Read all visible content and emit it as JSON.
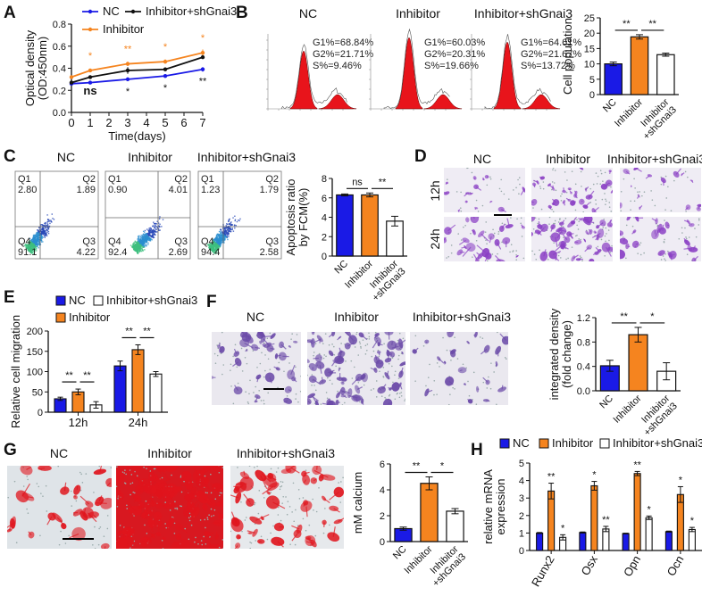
{
  "panels": {
    "A": {
      "label": "A"
    },
    "B": {
      "label": "B",
      "titles": [
        "NC",
        "Inhibitor",
        "Inhibitor+shGnai3"
      ],
      "histograms": [
        {
          "g1": "G1%=68.84%",
          "g2": "G2%=21.71%",
          "s": "S%=9.46%"
        },
        {
          "g1": "G1%=60.03%",
          "g2": "G2%=20.31%",
          "s": "S%=19.66%"
        },
        {
          "g1": "G1%=64.61%",
          "g2": "G2%=21.67%",
          "s": "S%=13.72%"
        }
      ],
      "hist_fill": "#e8141b"
    },
    "C": {
      "label": "C",
      "titles": [
        "NC",
        "Inhibitor",
        "Inhibitor+shGnai3"
      ],
      "flow": [
        {
          "q1": "2.80",
          "q2": "1.89",
          "q3": "4.22",
          "q4": "91.1"
        },
        {
          "q1": "0.90",
          "q2": "4.01",
          "q3": "2.69",
          "q4": "92.4"
        },
        {
          "q1": "1.23",
          "q2": "1.79",
          "q3": "2.58",
          "q4": "94.4"
        }
      ],
      "quadrant_names": [
        "Q1",
        "Q2",
        "Q3",
        "Q4"
      ]
    },
    "D": {
      "label": "D",
      "titles": [
        "NC",
        "Inhibitor",
        "Inhibitor+shGnai3"
      ],
      "rows": [
        "12h",
        "24h"
      ],
      "stain_color": "#8a3fc4"
    },
    "E": {
      "label": "E"
    },
    "F": {
      "label": "F",
      "titles": [
        "NC",
        "Inhibitor",
        "Inhibitor+shGnai3"
      ],
      "stain_color": "#6b4aa8"
    },
    "G": {
      "label": "G",
      "titles": [
        "NC",
        "Inhibitor",
        "Inhibitor+shGnai3"
      ],
      "stain_color": "#e0141c"
    },
    "H": {
      "label": "H"
    }
  },
  "colors": {
    "NC": "#1a1ae6",
    "Inhibitor": "#f5841f",
    "Inhibitor+shGnai3": "#ffffff",
    "line_shGnai3": "#111111"
  },
  "chart_data": [
    {
      "id": "A",
      "type": "line",
      "xlabel": "Time(days)",
      "ylabel": [
        "Optical density",
        "(OD:450nm)"
      ],
      "x": [
        0,
        1,
        3,
        5,
        7
      ],
      "xlim": [
        0,
        7
      ],
      "xticks": [
        "0",
        "1",
        "2",
        "3",
        "4",
        "5",
        "6",
        "7"
      ],
      "ylim": [
        0,
        0.8
      ],
      "yticks": [
        "0.0",
        "0.2",
        "0.4",
        "0.6",
        "0.8"
      ],
      "series": [
        {
          "name": "NC",
          "values": [
            0.26,
            0.27,
            0.3,
            0.33,
            0.39
          ],
          "errors": [
            0.01,
            0.01,
            0.01,
            0.01,
            0.02
          ]
        },
        {
          "name": "Inhibitor",
          "values": [
            0.32,
            0.38,
            0.44,
            0.46,
            0.54
          ],
          "errors": [
            0.01,
            0.01,
            0.02,
            0.02,
            0.03
          ]
        },
        {
          "name": "Inhibitor+shGnai3",
          "values": [
            0.27,
            0.32,
            0.38,
            0.39,
            0.5
          ],
          "errors": [
            0.01,
            0.01,
            0.03,
            0.01,
            0.01
          ]
        }
      ],
      "annotations_inhibitor": [
        "",
        "*",
        "**",
        "*",
        "*"
      ],
      "annotations_shGnai3": [
        "",
        "ns",
        "*",
        "*",
        "**"
      ],
      "legend": "top"
    },
    {
      "id": "B",
      "type": "bar",
      "ylabel": [
        "Cell population"
      ],
      "categories": [
        "NC",
        "Inhibitor",
        "Inhibitor\n+shGnai3"
      ],
      "values": [
        10.0,
        18.8,
        13.0
      ],
      "errors": [
        0.6,
        0.7,
        0.5
      ],
      "ylim": [
        0,
        25
      ],
      "yticks": [
        "0",
        "5",
        "10",
        "15",
        "20",
        "25"
      ],
      "comparisons": [
        {
          "from": 0,
          "to": 1,
          "label": "**"
        },
        {
          "from": 1,
          "to": 2,
          "label": "**"
        }
      ]
    },
    {
      "id": "C",
      "type": "bar",
      "ylabel": [
        "Apoptosis ratio",
        "by FCM(%)"
      ],
      "categories": [
        "NC",
        "Inhibitor",
        "Inhibitor\n+shGnai3"
      ],
      "values": [
        6.3,
        6.3,
        3.6
      ],
      "errors": [
        0.1,
        0.2,
        0.5
      ],
      "ylim": [
        0,
        8
      ],
      "yticks": [
        "0",
        "2",
        "4",
        "6",
        "8"
      ],
      "comparisons": [
        {
          "from": 0,
          "to": 1,
          "label": "ns"
        },
        {
          "from": 1,
          "to": 2,
          "label": "**"
        }
      ]
    },
    {
      "id": "E",
      "type": "grouped-bar",
      "ylabel": [
        "Relative cell migration"
      ],
      "categories": [
        "12h",
        "24h"
      ],
      "series": [
        {
          "name": "NC",
          "values": [
            33,
            114
          ],
          "errors": [
            4,
            12
          ]
        },
        {
          "name": "Inhibitor",
          "values": [
            50,
            154
          ],
          "errors": [
            7,
            12
          ]
        },
        {
          "name": "Inhibitor+shGnai3",
          "values": [
            18,
            94
          ],
          "errors": [
            8,
            6
          ]
        }
      ],
      "ylim": [
        0,
        200
      ],
      "yticks": [
        "0",
        "50",
        "100",
        "150",
        "200"
      ],
      "comparisons": [
        [
          {
            "from": 0,
            "to": 1,
            "label": "**"
          },
          {
            "from": 1,
            "to": 2,
            "label": "**"
          }
        ],
        [
          {
            "from": 0,
            "to": 1,
            "label": "**"
          },
          {
            "from": 1,
            "to": 2,
            "label": "**"
          }
        ]
      ],
      "legend": "top-left"
    },
    {
      "id": "F",
      "type": "bar",
      "ylabel": [
        "integrated density",
        "(fold change)"
      ],
      "categories": [
        "NC",
        "Inhibitor",
        "Inhibitor\n+shGnai3"
      ],
      "values": [
        0.41,
        0.92,
        0.32
      ],
      "errors": [
        0.09,
        0.12,
        0.14
      ],
      "ylim": [
        0,
        1.2
      ],
      "yticks": [
        "0.0",
        "0.4",
        "0.8",
        "1.2"
      ],
      "comparisons": [
        {
          "from": 0,
          "to": 1,
          "label": "**"
        },
        {
          "from": 1,
          "to": 2,
          "label": "*"
        }
      ]
    },
    {
      "id": "G",
      "type": "bar",
      "ylabel": [
        "mM calcium"
      ],
      "categories": [
        "NC",
        "Inhibitor",
        "Inhibitor\n+shGnai3"
      ],
      "values": [
        1.0,
        4.5,
        2.35
      ],
      "errors": [
        0.12,
        0.5,
        0.2
      ],
      "ylim": [
        0,
        6
      ],
      "yticks": [
        "0",
        "2",
        "4",
        "6"
      ],
      "comparisons": [
        {
          "from": 0,
          "to": 1,
          "label": "**"
        },
        {
          "from": 1,
          "to": 2,
          "label": "*"
        }
      ]
    },
    {
      "id": "H",
      "type": "grouped-bar",
      "ylabel": [
        "relative mRNA",
        "expression"
      ],
      "categories": [
        "Runx2",
        "Osx",
        "Opn",
        "Ocn"
      ],
      "series": [
        {
          "name": "NC",
          "values": [
            1.0,
            1.03,
            0.97,
            1.08
          ],
          "errors": [
            0.03,
            0.03,
            0.02,
            0.03
          ]
        },
        {
          "name": "Inhibitor",
          "values": [
            3.4,
            3.7,
            4.4,
            3.2
          ],
          "errors": [
            0.45,
            0.25,
            0.12,
            0.45
          ]
        },
        {
          "name": "Inhibitor+shGnai3",
          "values": [
            0.75,
            1.23,
            1.87,
            1.2
          ],
          "errors": [
            0.15,
            0.15,
            0.1,
            0.12
          ]
        }
      ],
      "ylim": [
        0,
        5
      ],
      "yticks": [
        "0",
        "1",
        "2",
        "3",
        "4",
        "5"
      ],
      "stars_inhibitor": [
        "**",
        "*",
        "**",
        "*"
      ],
      "stars_shGnai3": [
        "*",
        "**",
        "*",
        "*"
      ],
      "legend": "top"
    }
  ]
}
